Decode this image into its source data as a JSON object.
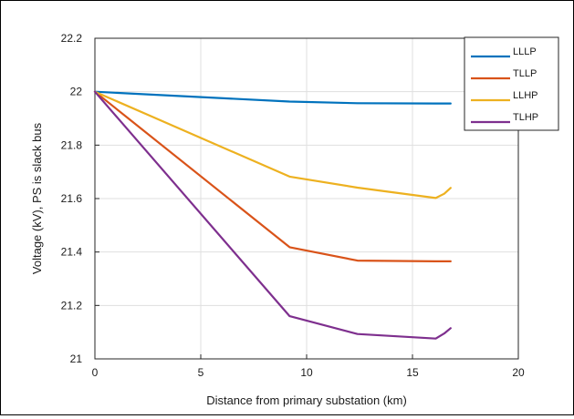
{
  "chart_data": {
    "type": "line",
    "xlabel": "Distance from primary substation (km)",
    "ylabel": "Voltage (kV), PS is slack bus",
    "xlim": [
      0,
      20
    ],
    "ylim": [
      21,
      22.2
    ],
    "xticks": [
      "0",
      "5",
      "10",
      "15",
      "20"
    ],
    "yticks": [
      "21",
      "21.2",
      "21.4",
      "21.6",
      "21.8",
      "22",
      "22.2"
    ],
    "grid": true,
    "legend_position": "top-right",
    "series": [
      {
        "name": "LLLP",
        "color": "#0072BD",
        "x": [
          0,
          9.2,
          12.4,
          16.1,
          16.8
        ],
        "y": [
          22.0,
          21.963,
          21.957,
          21.956,
          21.956
        ]
      },
      {
        "name": "TLLP",
        "color": "#D95319",
        "x": [
          0,
          9.2,
          12.4,
          16.1,
          16.8
        ],
        "y": [
          22.0,
          21.418,
          21.368,
          21.365,
          21.365
        ]
      },
      {
        "name": "LLHP",
        "color": "#EDB120",
        "x": [
          0,
          9.2,
          12.4,
          16.1,
          16.5,
          16.8
        ],
        "y": [
          22.0,
          21.682,
          21.641,
          21.602,
          21.618,
          21.64
        ]
      },
      {
        "name": "TLHP",
        "color": "#7E2F8E",
        "x": [
          0,
          9.2,
          12.4,
          16.1,
          16.5,
          16.8
        ],
        "y": [
          22.0,
          21.16,
          21.093,
          21.076,
          21.095,
          21.115
        ]
      }
    ]
  }
}
